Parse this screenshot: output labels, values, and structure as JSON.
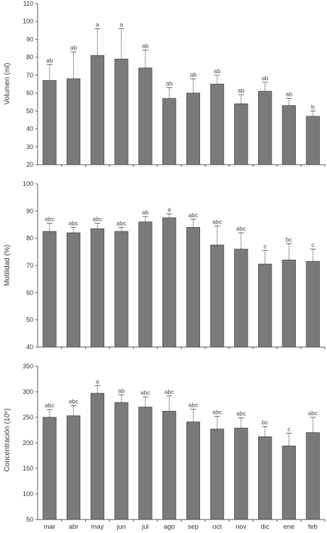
{
  "colors": {
    "bar_fill": "#7a7a7a",
    "bar_stroke": "#4a4a4a",
    "axis": "#555555",
    "error_bar": "#666666"
  },
  "chart_data": [
    {
      "type": "bar",
      "ylabel": "Volumen (ml)",
      "ylim": [
        20,
        110
      ],
      "yticks": [
        "20",
        "30",
        "40",
        "50",
        "60",
        "70",
        "80",
        "90",
        "100",
        "110"
      ],
      "grid": false,
      "categories": [
        "mar",
        "abr",
        "may",
        "jun",
        "jul",
        "ago",
        "sep",
        "oct",
        "nov",
        "dic",
        "ene",
        "feb"
      ],
      "values": [
        67,
        68,
        81,
        79,
        74,
        57,
        60,
        65,
        54,
        61,
        53,
        47
      ],
      "errors": [
        9,
        15,
        15,
        17,
        10,
        6,
        8,
        5,
        5,
        5,
        4,
        3
      ],
      "significance": [
        "ab",
        "ab",
        "a",
        "a",
        "ab",
        "ab",
        "ab",
        "ab",
        "ab",
        "ab",
        "ab",
        "b"
      ]
    },
    {
      "type": "bar",
      "ylabel": "Motilidad (%)",
      "ylim": [
        40,
        100
      ],
      "yticks": [
        "40",
        "50",
        "60",
        "70",
        "80",
        "90",
        "100"
      ],
      "grid": false,
      "categories": [
        "mar",
        "abr",
        "may",
        "jun",
        "jul",
        "ago",
        "sep",
        "oct",
        "nov",
        "dic",
        "ene",
        "feb"
      ],
      "values": [
        82.5,
        82,
        83.5,
        82.5,
        86,
        87.5,
        84,
        77.5,
        76,
        70.5,
        72,
        71.5
      ],
      "errors": [
        3,
        2,
        2,
        1.5,
        2,
        1.5,
        3,
        7,
        6,
        5,
        6,
        4.5
      ],
      "significance": [
        "abc",
        "abc",
        "abc",
        "abc",
        "ab",
        "a",
        "abc",
        "abc",
        "abc",
        "c",
        "bc",
        "c"
      ]
    },
    {
      "type": "bar",
      "ylabel": "Concentración (10⁶)",
      "ylim": [
        50,
        350
      ],
      "yticks": [
        "50",
        "100",
        "150",
        "200",
        "250",
        "300",
        "350"
      ],
      "grid": false,
      "categories": [
        "mar",
        "abr",
        "may",
        "jun",
        "jul",
        "ago",
        "sep",
        "oct",
        "nov",
        "dic",
        "ene",
        "feb"
      ],
      "values": [
        250,
        253,
        297,
        279,
        270,
        262,
        241,
        227,
        229,
        212,
        194,
        220
      ],
      "errors": [
        15,
        20,
        15,
        15,
        20,
        30,
        25,
        25,
        20,
        20,
        25,
        30
      ],
      "significance": [
        "abc",
        "abc",
        "a",
        "ab",
        "abc",
        "abc",
        "abc",
        "abc",
        "abc",
        "bc",
        "c",
        "abc"
      ]
    }
  ]
}
